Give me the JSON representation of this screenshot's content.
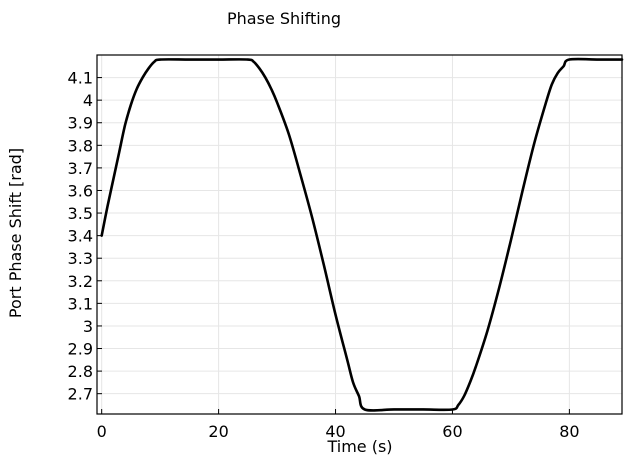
{
  "chart_data": {
    "type": "line",
    "title": "Phase Shifting",
    "xlabel": "Time (s)",
    "ylabel": "Port Phase Shift [rad]",
    "xlim": [
      -0.8,
      89
    ],
    "ylim": [
      2.61,
      4.2
    ],
    "grid": true,
    "x_ticks": [
      0,
      20,
      40,
      60,
      80
    ],
    "x_tick_labels": [
      "0",
      "20",
      "40",
      "60",
      "80"
    ],
    "y_ticks": [
      2.7,
      2.8,
      2.9,
      3.0,
      3.1,
      3.2,
      3.3,
      3.4,
      3.5,
      3.6,
      3.7,
      3.8,
      3.9,
      4.0,
      4.1
    ],
    "y_tick_labels": [
      "2.7",
      "2.8",
      "2.9",
      "3",
      "3.1",
      "3.2",
      "3.3",
      "3.4",
      "3.5",
      "3.6",
      "3.7",
      "3.8",
      "3.9",
      "4",
      "4.1"
    ],
    "series": [
      {
        "color": "#000000",
        "x": [
          0,
          1,
          2,
          3,
          4,
          5,
          6,
          7,
          8,
          9,
          10,
          15,
          20,
          25,
          26,
          27,
          28,
          29,
          30,
          32,
          34,
          36,
          38,
          40,
          42,
          43,
          44,
          45,
          50,
          55,
          60,
          61,
          62,
          63,
          64,
          66,
          68,
          70,
          72,
          74,
          76,
          77,
          78,
          79,
          80,
          85,
          89
        ],
        "y": [
          3.4,
          3.53,
          3.65,
          3.77,
          3.89,
          3.98,
          4.05,
          4.1,
          4.14,
          4.17,
          4.18,
          4.18,
          4.18,
          4.18,
          4.17,
          4.14,
          4.1,
          4.05,
          3.99,
          3.85,
          3.67,
          3.48,
          3.27,
          3.05,
          2.85,
          2.75,
          2.69,
          2.63,
          2.63,
          2.63,
          2.63,
          2.65,
          2.69,
          2.75,
          2.82,
          2.98,
          3.17,
          3.38,
          3.6,
          3.81,
          3.99,
          4.07,
          4.12,
          4.15,
          4.18,
          4.18,
          4.18
        ]
      }
    ]
  }
}
